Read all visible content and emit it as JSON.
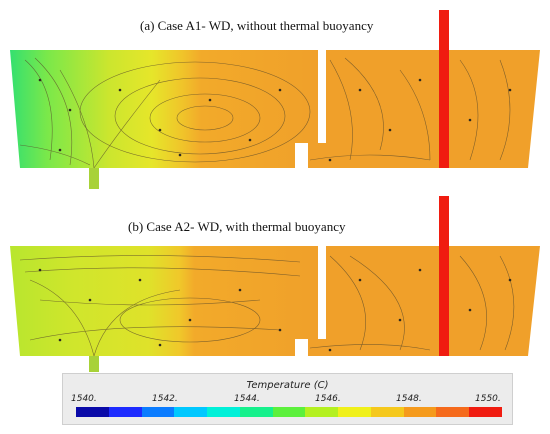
{
  "panels": [
    {
      "id": "a",
      "title": "(a)   Case A1- WD, without thermal buoyancy"
    },
    {
      "id": "b",
      "title": "(b) Case A2- WD, with thermal buoyancy"
    }
  ],
  "legend": {
    "title": "Temperature (C)",
    "ticks": [
      "1540.",
      "1542.",
      "1544.",
      "1546.",
      "1548.",
      "1550."
    ],
    "range": [
      1540,
      1550
    ],
    "colors": [
      "#0a0aa8",
      "#1d2bff",
      "#0a7cff",
      "#00c8ff",
      "#00f0d8",
      "#16f08c",
      "#5cf03c",
      "#b4f020",
      "#f0f01a",
      "#f5c81c",
      "#f59a1c",
      "#f56a1c",
      "#f01c10"
    ]
  },
  "colors": {
    "hot": "#f01c10",
    "warm": "#f0a028",
    "mid": "#d4e82c",
    "cool": "#2ee46e"
  }
}
